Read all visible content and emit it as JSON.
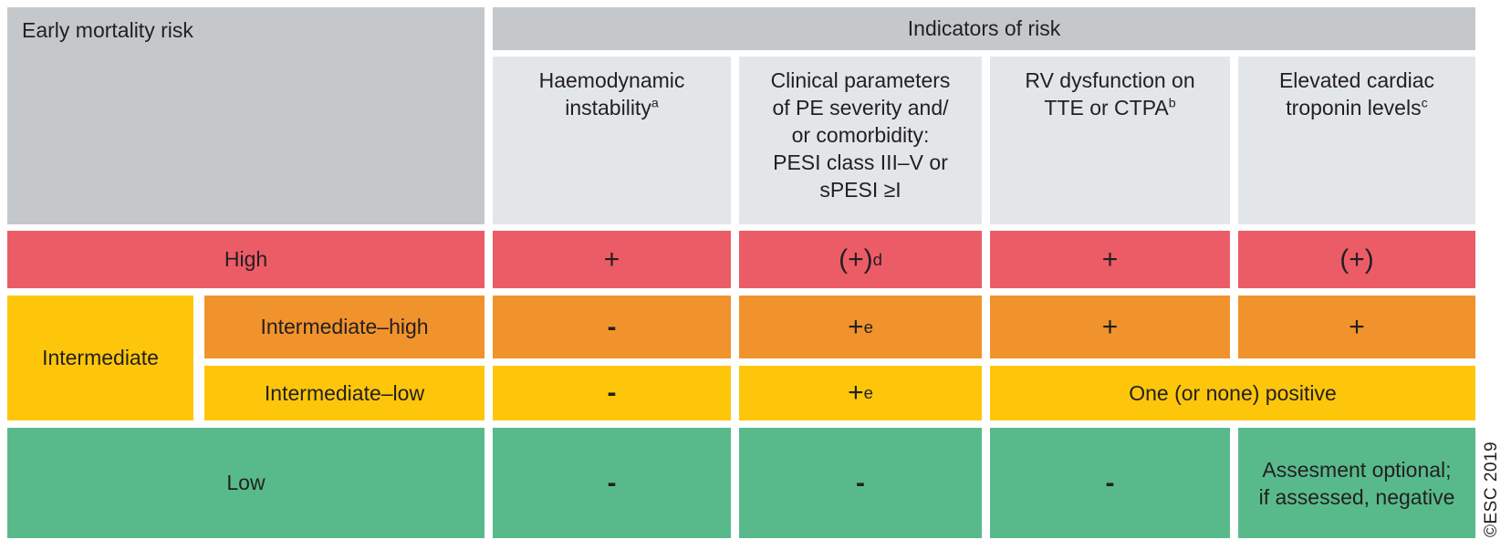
{
  "credit": "©ESC 2019",
  "colors": {
    "high": "#ec5c67",
    "intermediate_high": "#f1932c",
    "intermediate_low": "#fdc60b",
    "low": "#58ba8b",
    "header_dark_gray": "#c5c8cb",
    "header_light_gray": "#e3e6e9"
  },
  "table": {
    "corner_label": "Early mortality risk",
    "group_header": "Indicators of risk",
    "columns": [
      {
        "label": "Haemodynamic\ninstability",
        "sup": "a"
      },
      {
        "label": "Clinical parameters\nof PE severity and/\nor comorbidity:\nPESI class III–V or\nsPESI ≥I",
        "sup": ""
      },
      {
        "label": "RV dysfunction on\nTTE or CTPA",
        "sup": "b"
      },
      {
        "label": "Elevated cardiac\ntroponin levels",
        "sup": "c"
      }
    ],
    "rows": {
      "high": {
        "label": "High",
        "cells": [
          {
            "v": "+",
            "sup": ""
          },
          {
            "v": "(+)",
            "sup": "d"
          },
          {
            "v": "+",
            "sup": ""
          },
          {
            "v": "(+)",
            "sup": ""
          }
        ]
      },
      "intermediate": {
        "label": "Intermediate"
      },
      "intermediate_high": {
        "label": "Intermediate–high",
        "cells": [
          {
            "v": "-",
            "sup": ""
          },
          {
            "v": "+",
            "sup": "e"
          },
          {
            "v": "+",
            "sup": ""
          },
          {
            "v": "+",
            "sup": ""
          }
        ]
      },
      "intermediate_low": {
        "label": "Intermediate–low",
        "cells": [
          {
            "v": "-",
            "sup": ""
          },
          {
            "v": "+",
            "sup": "e"
          },
          {
            "v": "One (or none) positive",
            "sup": ""
          }
        ]
      },
      "low": {
        "label": "Low",
        "cells": [
          {
            "v": "-",
            "sup": ""
          },
          {
            "v": "-",
            "sup": ""
          },
          {
            "v": "-",
            "sup": ""
          },
          {
            "v": "Assesment optional;\nif assessed, negative",
            "sup": ""
          }
        ]
      }
    }
  },
  "chart_data": {
    "type": "table",
    "title": "Early mortality risk vs Indicators of risk",
    "columns": [
      "Early mortality risk",
      "Haemodynamic instability (a)",
      "Clinical parameters of PE severity and/or comorbidity: PESI class III–V or sPESI ≥I",
      "RV dysfunction on TTE or CTPA (b)",
      "Elevated cardiac troponin levels (c)"
    ],
    "rows": [
      [
        "High",
        "+",
        "(+) (d)",
        "+",
        "(+)"
      ],
      [
        "Intermediate / Intermediate–high",
        "-",
        "+ (e)",
        "+",
        "+"
      ],
      [
        "Intermediate / Intermediate–low",
        "-",
        "+ (e)",
        "One (or none) positive",
        "One (or none) positive"
      ],
      [
        "Low",
        "-",
        "-",
        "-",
        "Assesment optional; if assessed, negative"
      ]
    ],
    "credit": "©ESC 2019"
  }
}
